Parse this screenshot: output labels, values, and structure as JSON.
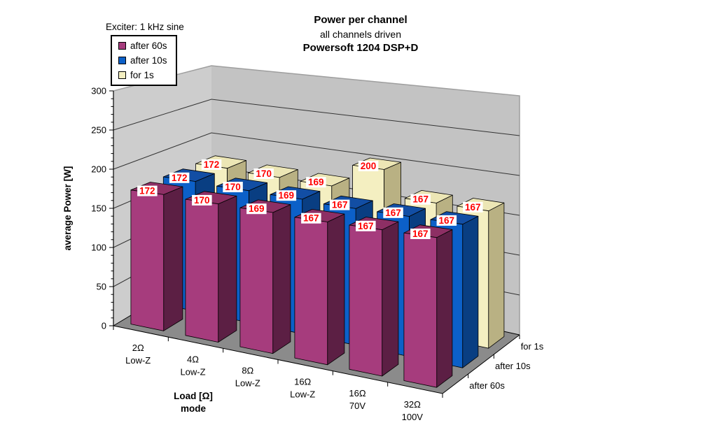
{
  "chart_data": {
    "type": "bar",
    "projection": "3d-column",
    "title": "Power per channel",
    "subtitle": "all channels driven",
    "device": "Powersoft 1204 DSP+D",
    "annotation": "Exciter: 1 kHz sine",
    "ylabel": "average Power [W]",
    "xlabel": [
      "Load [Ω]",
      "mode"
    ],
    "ylim": [
      0,
      300
    ],
    "ytick_major": 50,
    "ytick_minor": 10,
    "grid": true,
    "legend_position": "top-left",
    "categories": [
      [
        "2Ω",
        "Low-Z"
      ],
      [
        "4Ω",
        "Low-Z"
      ],
      [
        "8Ω",
        "Low-Z"
      ],
      [
        "16Ω",
        "Low-Z"
      ],
      [
        "16Ω",
        "70V"
      ],
      [
        "32Ω",
        "100V"
      ]
    ],
    "series": [
      {
        "name": "after 60s",
        "values": [
          172,
          170,
          169,
          167,
          167,
          167
        ],
        "color": {
          "front": "#A63C7D",
          "side": "#5C1F44",
          "top": "#8D2F64"
        }
      },
      {
        "name": "after 10s",
        "values": [
          172,
          170,
          169,
          167,
          167,
          167
        ],
        "color": {
          "front": "#0C60C8",
          "side": "#093E82",
          "top": "#124EA4"
        }
      },
      {
        "name": "for 1s",
        "values": [
          172,
          170,
          169,
          200,
          167,
          167
        ],
        "color": {
          "front": "#F4EFC1",
          "side": "#B9B183",
          "top": "#ECE6B5"
        }
      }
    ],
    "data_labels": {
      "color": "#FF0000",
      "background": "#FFFFFF"
    },
    "colors": {
      "back_wall": "#C3C3C3",
      "left_wall": "#CDCDCD",
      "floor": "#8B8B8B",
      "gridline": "#333333",
      "axis": "#000000",
      "wall_edge": "#9E9E9E"
    }
  }
}
